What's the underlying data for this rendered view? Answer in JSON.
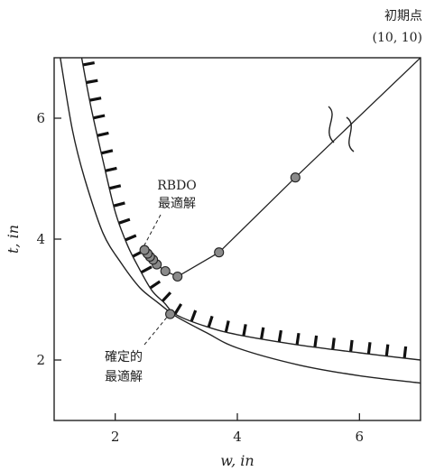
{
  "chart_data": {
    "type": "line",
    "xlabel": "w, in",
    "ylabel": "t, in",
    "xlim": [
      1,
      7
    ],
    "ylim": [
      1,
      7
    ],
    "x_ticks": [
      2,
      4,
      6
    ],
    "y_ticks": [
      2,
      4,
      6
    ],
    "grid": false,
    "curves": {
      "upper_constraint": [
        [
          1.45,
          7.0
        ],
        [
          1.6,
          6.2
        ],
        [
          1.8,
          5.3
        ],
        [
          2.0,
          4.45
        ],
        [
          2.2,
          3.9
        ],
        [
          2.4,
          3.5
        ],
        [
          2.6,
          3.15
        ],
        [
          2.8,
          2.95
        ],
        [
          3.0,
          2.75
        ],
        [
          3.5,
          2.55
        ],
        [
          4.0,
          2.42
        ],
        [
          5.0,
          2.25
        ],
        [
          6.0,
          2.12
        ],
        [
          7.0,
          2.0
        ]
      ],
      "lower_constraint": [
        [
          1.1,
          7.0
        ],
        [
          1.3,
          5.8
        ],
        [
          1.5,
          5.0
        ],
        [
          1.8,
          4.1
        ],
        [
          2.1,
          3.6
        ],
        [
          2.4,
          3.2
        ],
        [
          2.7,
          2.95
        ],
        [
          3.0,
          2.72
        ],
        [
          3.5,
          2.45
        ],
        [
          4.0,
          2.2
        ],
        [
          5.0,
          1.92
        ],
        [
          6.0,
          1.74
        ],
        [
          7.0,
          1.62
        ]
      ]
    },
    "optimization_path": [
      [
        7.0,
        7.0
      ],
      [
        4.95,
        5.02
      ],
      [
        3.7,
        3.78
      ],
      [
        3.02,
        3.38
      ],
      [
        2.82,
        3.47
      ],
      [
        2.68,
        3.58
      ],
      [
        2.55,
        3.72
      ],
      [
        2.48,
        3.82
      ]
    ],
    "path_points": [
      [
        4.95,
        5.02
      ],
      [
        3.7,
        3.78
      ],
      [
        3.02,
        3.38
      ],
      [
        2.82,
        3.47
      ],
      [
        2.68,
        3.58
      ],
      [
        2.62,
        3.66
      ],
      [
        2.57,
        3.71
      ],
      [
        2.53,
        3.76
      ],
      [
        2.48,
        3.82
      ]
    ],
    "deterministic_optimum": [
      2.9,
      2.76
    ],
    "annotations": {
      "initial_line1": "初期点",
      "initial_line2": "(10, 10)",
      "rbdo_line1": "RBDO",
      "rbdo_line2": "最適解",
      "det_line1": "確定的",
      "det_line2": "最適解"
    }
  }
}
